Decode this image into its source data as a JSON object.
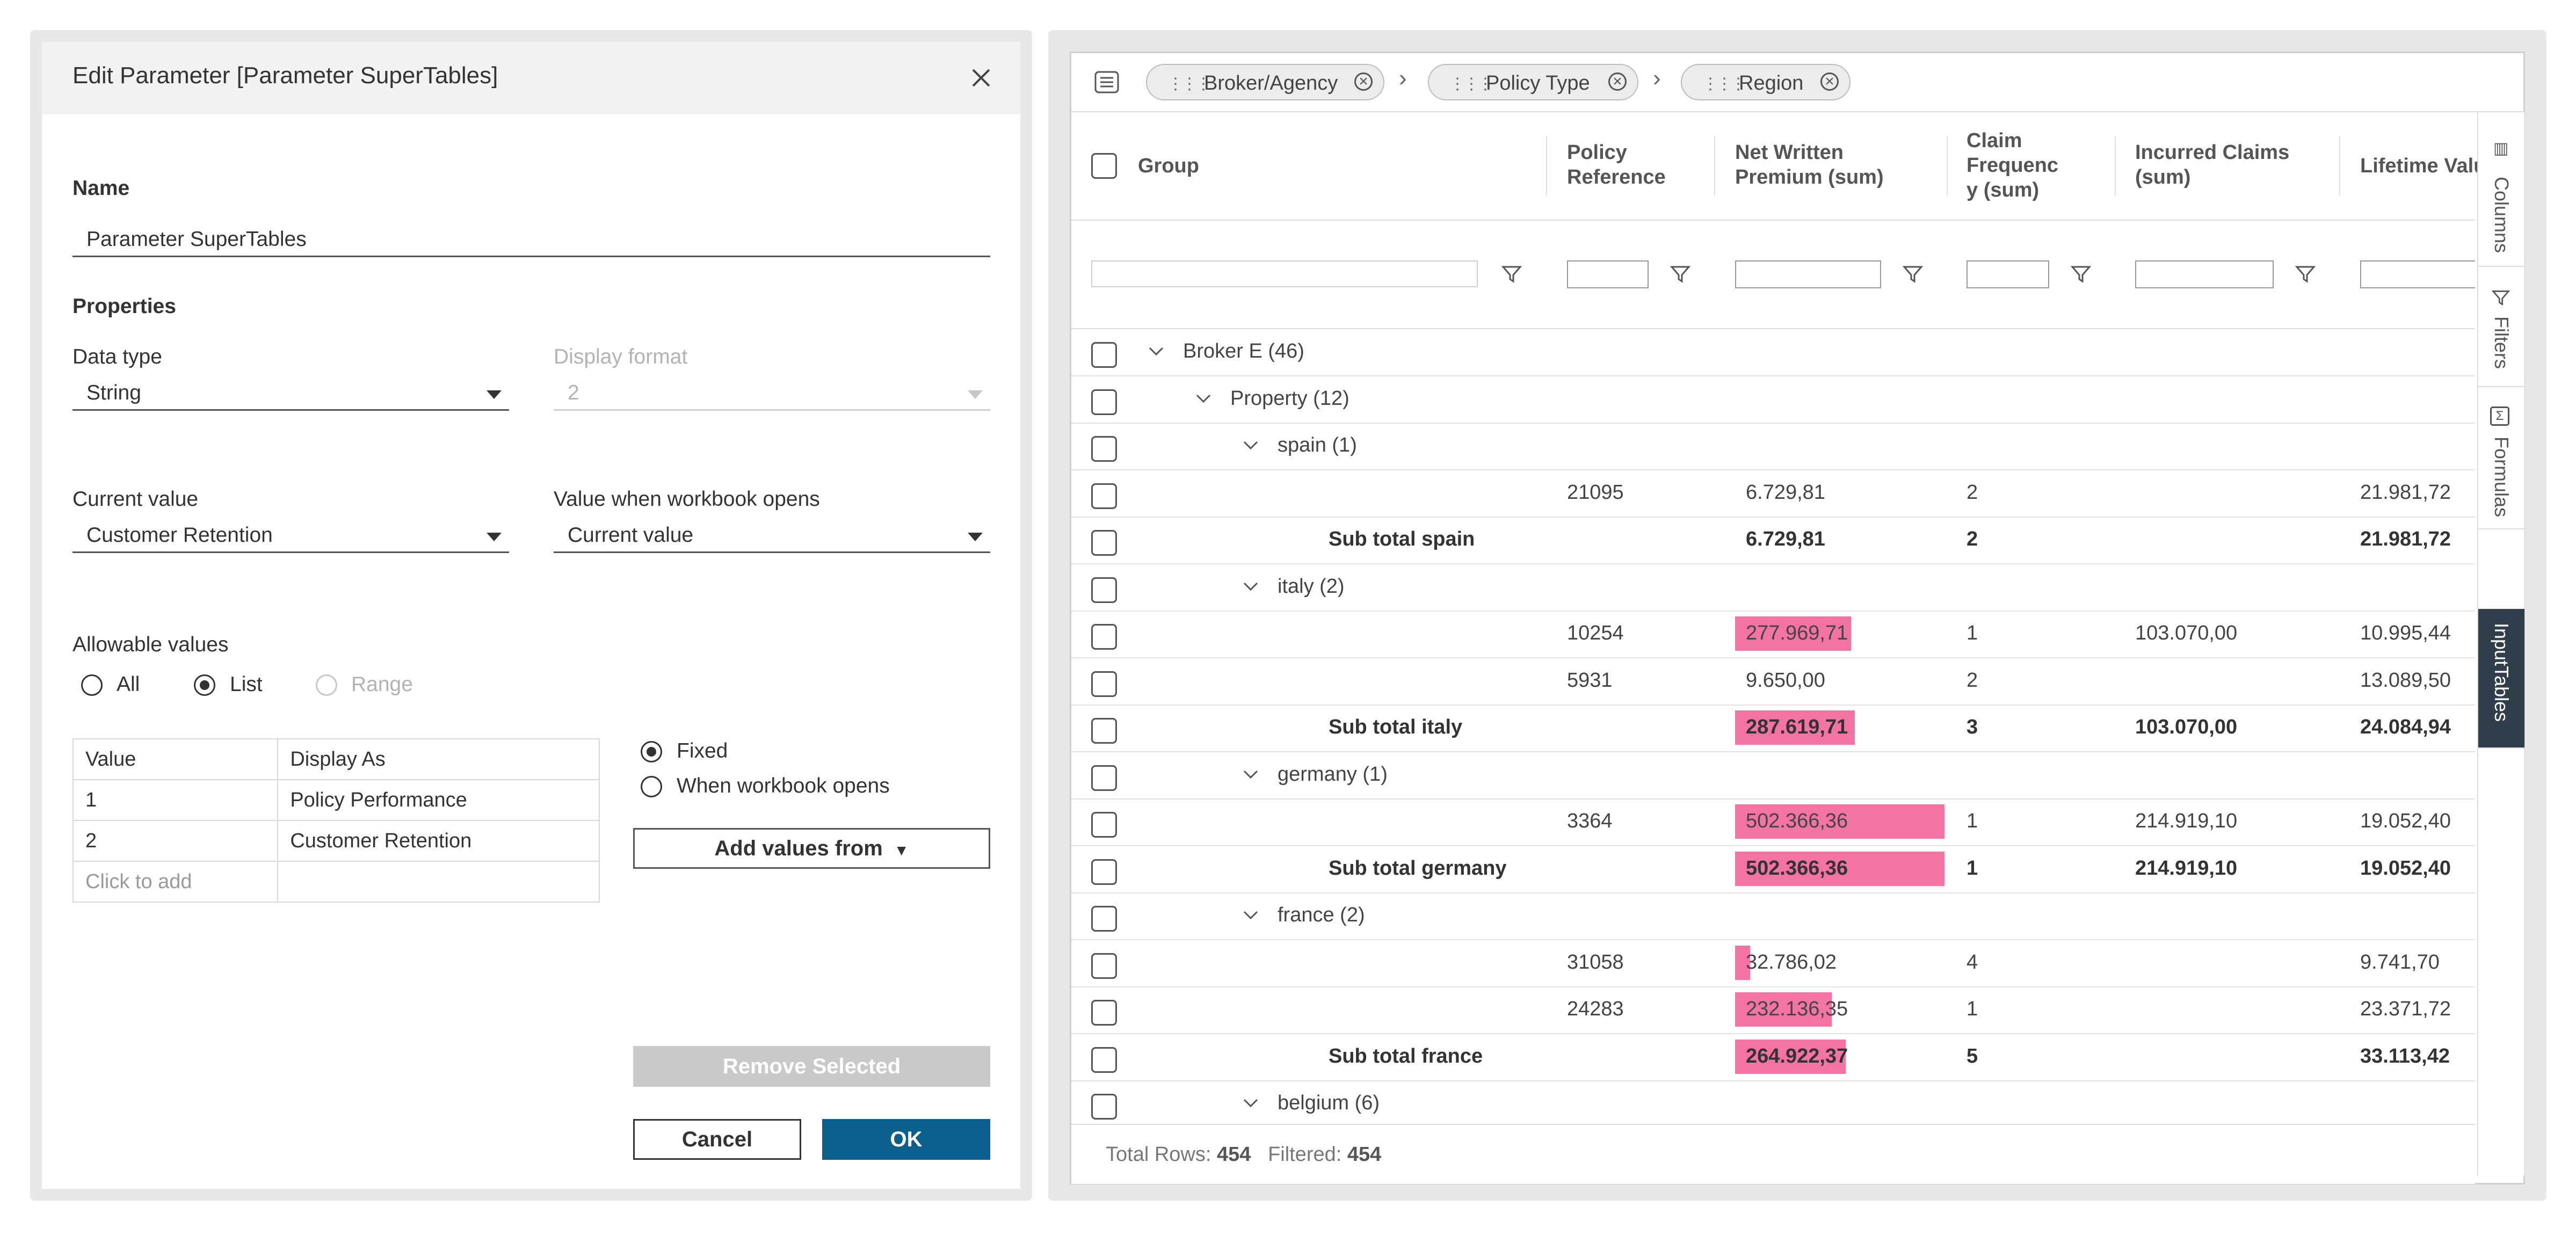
{
  "dialog": {
    "title": "Edit Parameter [Parameter SuperTables]",
    "name_label": "Name",
    "name_value": "Parameter SuperTables",
    "properties_label": "Properties",
    "data_type_label": "Data type",
    "data_type_value": "String",
    "display_format_label": "Display format",
    "display_format_value": "2",
    "current_value_label": "Current value",
    "current_value_value": "Customer Retention",
    "value_when_opens_label": "Value when workbook opens",
    "value_when_opens_value": "Current value",
    "allowable_values_label": "Allowable values",
    "allowable_options": [
      {
        "label": "All",
        "selected": false,
        "disabled": false
      },
      {
        "label": "List",
        "selected": true,
        "disabled": false
      },
      {
        "label": "Range",
        "selected": false,
        "disabled": true
      }
    ],
    "values_table": {
      "headers": [
        "Value",
        "Display As"
      ],
      "rows": [
        {
          "value": "1",
          "display": "Policy Performance"
        },
        {
          "value": "2",
          "display": "Customer Retention"
        }
      ],
      "add_placeholder": "Click to add"
    },
    "fixed_label": "Fixed",
    "when_opens_label": "When workbook opens",
    "add_values_from_label": "Add values from",
    "remove_selected_label": "Remove Selected",
    "cancel_label": "Cancel",
    "ok_label": "OK",
    "colors": {
      "ok_button": "#0b5f8d",
      "remove_button": "#c9c9c9"
    }
  },
  "grid": {
    "breadcrumbs": [
      "Broker/Agency",
      "Policy Type",
      "Region"
    ],
    "columns": {
      "group": "Group",
      "policy_ref": "Policy\nReference",
      "nwp": "Net Written\nPremium (sum)",
      "claim_freq": "Claim\nFrequenc\ny (sum)",
      "incurred": "Incurred Claims\n(sum)",
      "lifetime": "Lifetime Valu"
    },
    "side_tabs": [
      "Columns",
      "Filters",
      "Formulas",
      "InputTables"
    ],
    "active_side_tab": "InputTables",
    "bar_color": "#f373a3",
    "bar_max": 502366.36,
    "rows": [
      {
        "kind": "group",
        "level": 0,
        "label": "Broker E (46)"
      },
      {
        "kind": "group",
        "level": 1,
        "label": "Property (12)"
      },
      {
        "kind": "group",
        "level": 2,
        "label": "spain (1)"
      },
      {
        "kind": "data",
        "ref": "21095",
        "nwp": "6.729,81",
        "nwp_value": 6729.81,
        "cf": "2",
        "ic": "",
        "lv": "21.981,72"
      },
      {
        "kind": "sub",
        "label": "Sub total spain",
        "nwp": "6.729,81",
        "nwp_value": 6729.81,
        "cf": "2",
        "ic": "",
        "lv": "21.981,72"
      },
      {
        "kind": "group",
        "level": 2,
        "label": "italy (2)"
      },
      {
        "kind": "data",
        "ref": "10254",
        "nwp": "277.969,71",
        "nwp_value": 277969.71,
        "cf": "1",
        "ic": "103.070,00",
        "lv": "10.995,44"
      },
      {
        "kind": "data",
        "ref": "5931",
        "nwp": "9.650,00",
        "nwp_value": 9650.0,
        "cf": "2",
        "ic": "",
        "lv": "13.089,50"
      },
      {
        "kind": "sub",
        "label": "Sub total italy",
        "nwp": "287.619,71",
        "nwp_value": 287619.71,
        "cf": "3",
        "ic": "103.070,00",
        "lv": "24.084,94"
      },
      {
        "kind": "group",
        "level": 2,
        "label": "germany (1)"
      },
      {
        "kind": "data",
        "ref": "3364",
        "nwp": "502.366,36",
        "nwp_value": 502366.36,
        "cf": "1",
        "ic": "214.919,10",
        "lv": "19.052,40"
      },
      {
        "kind": "sub",
        "label": "Sub total germany",
        "nwp": "502.366,36",
        "nwp_value": 502366.36,
        "cf": "1",
        "ic": "214.919,10",
        "lv": "19.052,40"
      },
      {
        "kind": "group",
        "level": 2,
        "label": "france (2)"
      },
      {
        "kind": "data",
        "ref": "31058",
        "nwp": "32.786,02",
        "nwp_value": 32786.02,
        "cf": "4",
        "ic": "",
        "lv": "9.741,70"
      },
      {
        "kind": "data",
        "ref": "24283",
        "nwp": "232.136,35",
        "nwp_value": 232136.35,
        "cf": "1",
        "ic": "",
        "lv": "23.371,72"
      },
      {
        "kind": "sub",
        "label": "Sub total france",
        "nwp": "264.922,37",
        "nwp_value": 264922.37,
        "cf": "5",
        "ic": "",
        "lv": "33.113,42"
      },
      {
        "kind": "group",
        "level": 2,
        "label": "belgium (6)"
      }
    ],
    "footer": {
      "total_rows_label": "Total Rows:",
      "total_rows_value": "454",
      "filtered_label": "Filtered:",
      "filtered_value": "454"
    }
  }
}
